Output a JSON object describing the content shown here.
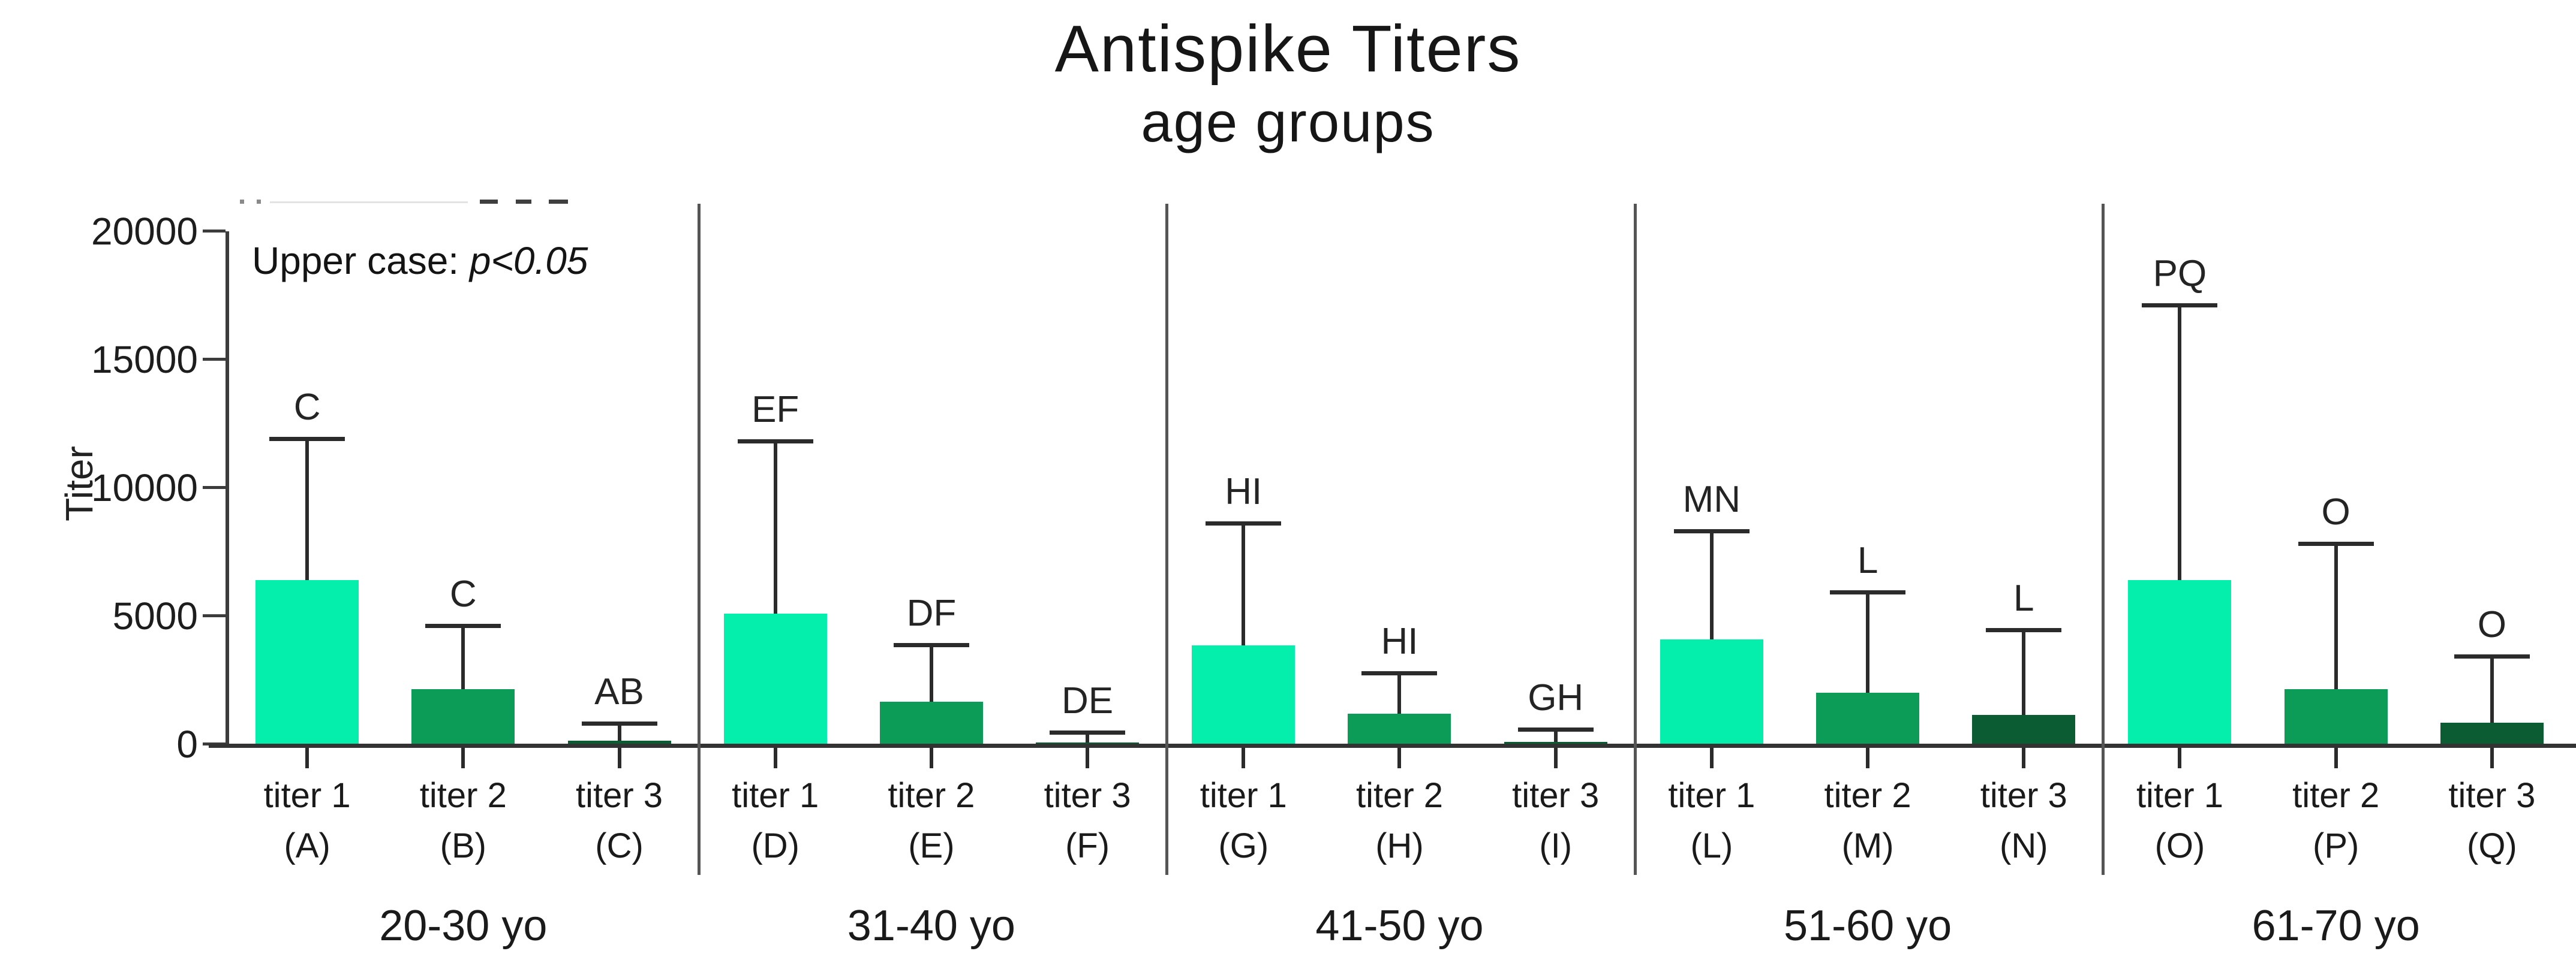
{
  "title": "Antispike Titers",
  "subtitle": "age groups",
  "annotation": {
    "prefix": "Upper case: ",
    "italic": "p<0.05"
  },
  "y_axis": {
    "label": "Titer",
    "ticks": [
      "20000",
      "15000",
      "10000",
      "5000",
      "0"
    ]
  },
  "colors": {
    "titer1": "#04efac",
    "titer2": "#0d9b58",
    "titer3": "#0c5c33"
  },
  "chart_data": {
    "type": "bar",
    "title": "Antispike Titers",
    "subtitle": "age groups",
    "ylabel": "Titer",
    "ylim": [
      0,
      20000
    ],
    "yticks": [
      0,
      5000,
      10000,
      15000,
      20000
    ],
    "grid": false,
    "legend": "none",
    "annotation": "Upper case: p<0.05",
    "error_bars": "upper whisker with cap",
    "groups": [
      {
        "group": "20-30 yo",
        "bars": [
          {
            "category": "titer 1",
            "letter": "(A)",
            "value": 6400,
            "error_top": 11900,
            "significance": "C",
            "color_key": "titer1"
          },
          {
            "category": "titer 2",
            "letter": "(B)",
            "value": 2150,
            "error_top": 4600,
            "significance": "C",
            "color_key": "titer2"
          },
          {
            "category": "titer 3",
            "letter": "(C)",
            "value": 150,
            "error_top": 800,
            "significance": "AB",
            "color_key": "titer3"
          }
        ]
      },
      {
        "group": "31-40 yo",
        "bars": [
          {
            "category": "titer 1",
            "letter": "(D)",
            "value": 5100,
            "error_top": 11800,
            "significance": "EF",
            "color_key": "titer1"
          },
          {
            "category": "titer 2",
            "letter": "(E)",
            "value": 1650,
            "error_top": 3850,
            "significance": "DF",
            "color_key": "titer2"
          },
          {
            "category": "titer 3",
            "letter": "(F)",
            "value": 80,
            "error_top": 450,
            "significance": "DE",
            "color_key": "titer3"
          }
        ]
      },
      {
        "group": "41-50 yo",
        "bars": [
          {
            "category": "titer 1",
            "letter": "(G)",
            "value": 3850,
            "error_top": 8600,
            "significance": "HI",
            "color_key": "titer1"
          },
          {
            "category": "titer 2",
            "letter": "(H)",
            "value": 1200,
            "error_top": 2750,
            "significance": "HI",
            "color_key": "titer2"
          },
          {
            "category": "titer 3",
            "letter": "(I)",
            "value": 100,
            "error_top": 550,
            "significance": "GH",
            "color_key": "titer3"
          }
        ]
      },
      {
        "group": "51-60 yo",
        "bars": [
          {
            "category": "titer 1",
            "letter": "(L)",
            "value": 4100,
            "error_top": 8300,
            "significance": "MN",
            "color_key": "titer1"
          },
          {
            "category": "titer 2",
            "letter": "(M)",
            "value": 2000,
            "error_top": 5900,
            "significance": "L",
            "color_key": "titer2"
          },
          {
            "category": "titer 3",
            "letter": "(N)",
            "value": 1150,
            "error_top": 4450,
            "significance": "L",
            "color_key": "titer3"
          }
        ]
      },
      {
        "group": "61-70 yo",
        "bars": [
          {
            "category": "titer 1",
            "letter": "(O)",
            "value": 6400,
            "error_top": 17100,
            "significance": "PQ",
            "color_key": "titer1"
          },
          {
            "category": "titer 2",
            "letter": "(P)",
            "value": 2150,
            "error_top": 7800,
            "significance": "O",
            "color_key": "titer2"
          },
          {
            "category": "titer 3",
            "letter": "(Q)",
            "value": 850,
            "error_top": 3400,
            "significance": "O",
            "color_key": "titer3"
          }
        ]
      }
    ]
  }
}
